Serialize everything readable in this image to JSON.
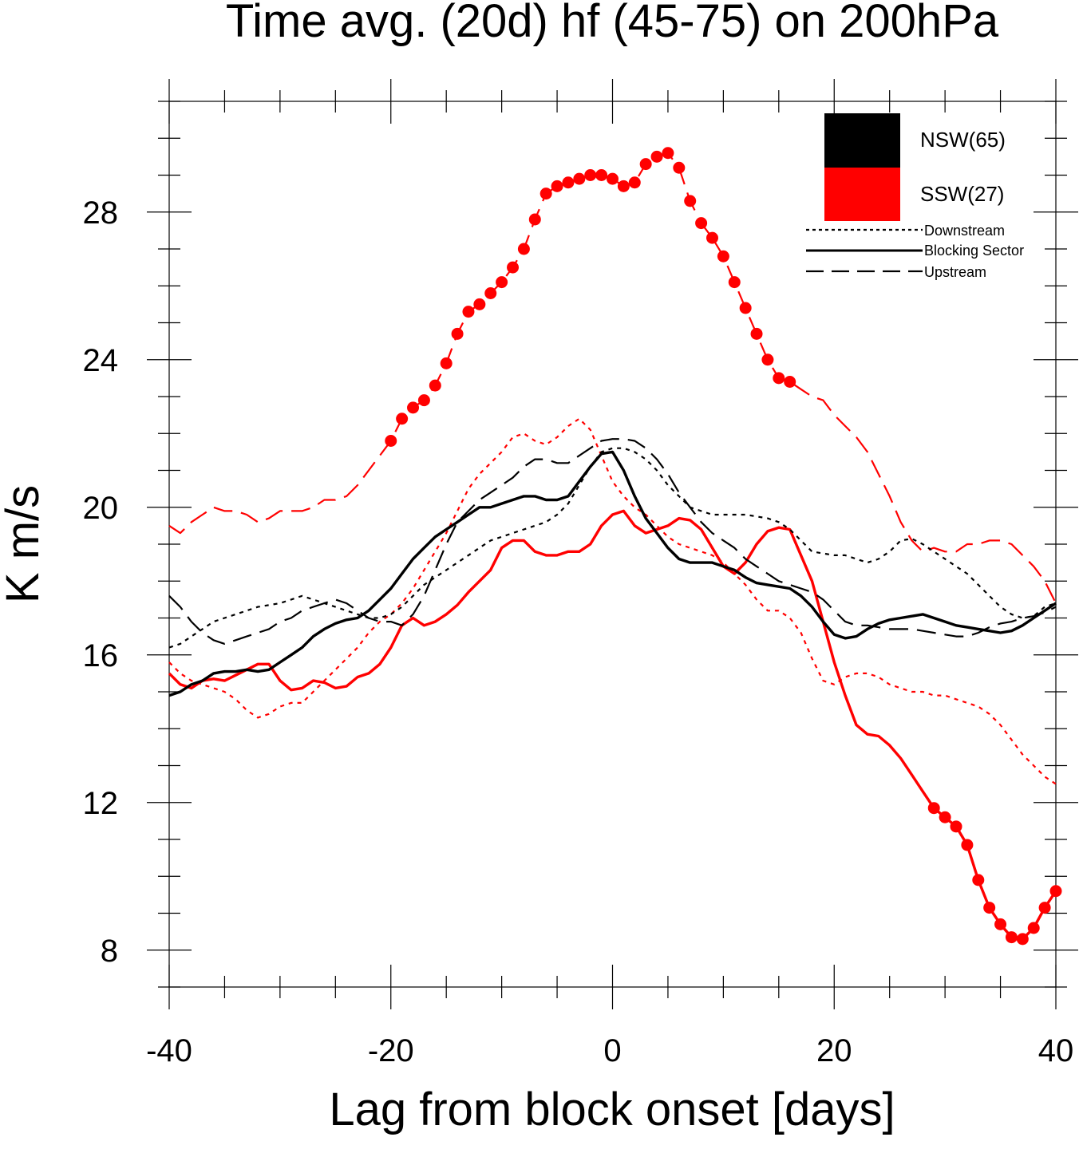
{
  "chart_data": {
    "type": "line",
    "title": "Time avg. (20d) hf (45-75) on 200hPa",
    "xlabel": "Lag from block onset [days]",
    "ylabel": "K m/s",
    "xlim": [
      -40,
      40
    ],
    "ylim": [
      7,
      31
    ],
    "xticks": [
      -40,
      -20,
      0,
      20,
      40
    ],
    "xtick_labels": [
      "-40",
      "-20",
      "0",
      "20",
      "40"
    ],
    "yticks": [
      8,
      12,
      16,
      20,
      24,
      28
    ],
    "ytick_labels": [
      "8",
      "12",
      "16",
      "20",
      "24",
      "28"
    ],
    "grid": false,
    "legend": {
      "placement": "top-right",
      "groups": [
        {
          "label": "NSW(65)",
          "color": "#000000"
        },
        {
          "label": "SSW(27)",
          "color": "#ff0000"
        }
      ],
      "styles": [
        {
          "label": "Downstream",
          "dash": "dotted"
        },
        {
          "label": "Blocking Sector",
          "dash": "solid"
        },
        {
          "label": "Upstream",
          "dash": "dashed"
        }
      ]
    },
    "colors": {
      "NSW": "#000000",
      "SSW": "#ff0000"
    },
    "series": [
      {
        "group": "SSW",
        "sector": "Upstream",
        "color": "#ff0000",
        "dash": "dashed",
        "x": [
          -40,
          -39,
          -38,
          -37,
          -36,
          -35,
          -34,
          -33,
          -32,
          -31,
          -30,
          -29,
          -28,
          -27,
          -26,
          -25,
          -24,
          -23,
          -22,
          -21,
          -20,
          -19,
          -18,
          -17,
          -16,
          -15,
          -14,
          -13,
          -12,
          -11,
          -10,
          -9,
          -8,
          -7,
          -6,
          -5,
          -4,
          -3,
          -2,
          -1,
          0,
          1,
          2,
          3,
          4,
          5,
          6,
          7,
          8,
          9,
          10,
          11,
          12,
          13,
          14,
          15,
          16,
          17,
          18,
          19,
          20,
          21,
          22,
          23,
          24,
          25,
          26,
          27,
          28,
          29,
          30,
          31,
          32,
          33,
          34,
          35,
          36,
          37,
          38,
          39,
          40
        ],
        "y": [
          19.5,
          19.3,
          19.6,
          19.8,
          20.0,
          19.9,
          19.9,
          19.8,
          19.6,
          19.7,
          19.9,
          19.9,
          19.9,
          20.0,
          20.2,
          20.2,
          20.3,
          20.6,
          21.0,
          21.4,
          21.8,
          22.4,
          22.7,
          22.9,
          23.3,
          23.9,
          24.7,
          25.3,
          25.5,
          25.8,
          26.1,
          26.5,
          27.0,
          27.8,
          28.5,
          28.7,
          28.8,
          28.9,
          29.0,
          29.0,
          28.9,
          28.7,
          28.8,
          29.3,
          29.5,
          29.6,
          29.2,
          28.3,
          27.7,
          27.3,
          26.8,
          26.1,
          25.4,
          24.7,
          24.0,
          23.5,
          23.4,
          23.2,
          23.0,
          22.9,
          22.5,
          22.2,
          21.9,
          21.5,
          20.9,
          20.3,
          19.6,
          19.1,
          18.8,
          18.9,
          18.8,
          18.8,
          19.0,
          19.0,
          19.1,
          19.1,
          19.0,
          18.7,
          18.4,
          18.0,
          17.4
        ],
        "markers": {
          "from": -20,
          "to": 16
        }
      },
      {
        "group": "SSW",
        "sector": "Blocking Sector",
        "color": "#ff0000",
        "dash": "solid",
        "x": [
          -40,
          -39,
          -38,
          -37,
          -36,
          -35,
          -34,
          -33,
          -32,
          -31,
          -30,
          -29,
          -28,
          -27,
          -26,
          -25,
          -24,
          -23,
          -22,
          -21,
          -20,
          -19,
          -18,
          -17,
          -16,
          -15,
          -14,
          -13,
          -12,
          -11,
          -10,
          -9,
          -8,
          -7,
          -6,
          -5,
          -4,
          -3,
          -2,
          -1,
          0,
          1,
          2,
          3,
          4,
          5,
          6,
          7,
          8,
          9,
          10,
          11,
          12,
          13,
          14,
          15,
          16,
          17,
          18,
          19,
          20,
          21,
          22,
          23,
          24,
          25,
          26,
          27,
          28,
          29,
          30,
          31,
          32,
          33,
          34,
          35,
          36,
          37,
          38,
          39,
          40
        ],
        "y": [
          15.5,
          15.2,
          15.1,
          15.3,
          15.35,
          15.3,
          15.45,
          15.6,
          15.75,
          15.75,
          15.3,
          15.05,
          15.1,
          15.3,
          15.25,
          15.1,
          15.15,
          15.4,
          15.5,
          15.75,
          16.2,
          16.8,
          17.0,
          16.8,
          16.9,
          17.1,
          17.35,
          17.7,
          18.0,
          18.3,
          18.9,
          19.1,
          19.1,
          18.8,
          18.7,
          18.7,
          18.8,
          18.8,
          19.0,
          19.5,
          19.8,
          19.9,
          19.5,
          19.3,
          19.4,
          19.5,
          19.7,
          19.65,
          19.4,
          18.9,
          18.4,
          18.2,
          18.5,
          19.0,
          19.35,
          19.45,
          19.4,
          18.7,
          18.0,
          16.9,
          15.8,
          14.9,
          14.1,
          13.85,
          13.8,
          13.55,
          13.2,
          12.75,
          12.3,
          11.85,
          11.6,
          11.35,
          10.85,
          9.9,
          9.15,
          8.7,
          8.35,
          8.3,
          8.6,
          9.15,
          9.6
        ],
        "markers": {
          "from": 29,
          "to": 40
        }
      },
      {
        "group": "SSW",
        "sector": "Downstream",
        "color": "#ff0000",
        "dash": "dotted",
        "x": [
          -40,
          -39,
          -38,
          -37,
          -36,
          -35,
          -34,
          -33,
          -32,
          -31,
          -30,
          -29,
          -28,
          -27,
          -26,
          -25,
          -24,
          -23,
          -22,
          -21,
          -20,
          -19,
          -18,
          -17,
          -16,
          -15,
          -14,
          -13,
          -12,
          -11,
          -10,
          -9,
          -8,
          -7,
          -6,
          -5,
          -4,
          -3,
          -2,
          -1,
          0,
          1,
          2,
          3,
          4,
          5,
          6,
          7,
          8,
          9,
          10,
          11,
          12,
          13,
          14,
          15,
          16,
          17,
          18,
          19,
          20,
          21,
          22,
          23,
          24,
          25,
          26,
          27,
          28,
          29,
          30,
          31,
          32,
          33,
          34,
          35,
          36,
          37,
          38,
          39,
          40
        ],
        "y": [
          15.8,
          15.5,
          15.3,
          15.2,
          15.1,
          15.0,
          14.8,
          14.5,
          14.3,
          14.4,
          14.6,
          14.7,
          14.7,
          15.0,
          15.3,
          15.6,
          15.9,
          16.2,
          16.6,
          16.9,
          17.1,
          17.4,
          17.8,
          18.3,
          18.8,
          19.3,
          19.9,
          20.5,
          20.9,
          21.2,
          21.5,
          21.9,
          22.0,
          21.8,
          21.7,
          21.9,
          22.2,
          22.4,
          22.1,
          21.4,
          20.7,
          20.3,
          20.0,
          19.8,
          19.5,
          19.2,
          19.0,
          18.9,
          18.8,
          18.7,
          18.5,
          18.2,
          17.9,
          17.5,
          17.2,
          17.2,
          17.0,
          16.6,
          15.9,
          15.3,
          15.2,
          15.4,
          15.5,
          15.5,
          15.4,
          15.2,
          15.1,
          15.0,
          15.0,
          14.9,
          14.9,
          14.8,
          14.7,
          14.6,
          14.4,
          14.1,
          13.7,
          13.3,
          13.0,
          12.7,
          12.5
        ]
      },
      {
        "group": "NSW",
        "sector": "Upstream",
        "color": "#000000",
        "dash": "dashed",
        "x": [
          -40,
          -39,
          -38,
          -37,
          -36,
          -35,
          -34,
          -33,
          -32,
          -31,
          -30,
          -29,
          -28,
          -27,
          -26,
          -25,
          -24,
          -23,
          -22,
          -21,
          -20,
          -19,
          -18,
          -17,
          -16,
          -15,
          -14,
          -13,
          -12,
          -11,
          -10,
          -9,
          -8,
          -7,
          -6,
          -5,
          -4,
          -3,
          -2,
          -1,
          0,
          1,
          2,
          3,
          4,
          5,
          6,
          7,
          8,
          9,
          10,
          11,
          12,
          13,
          14,
          15,
          16,
          17,
          18,
          19,
          20,
          21,
          22,
          23,
          24,
          25,
          26,
          27,
          28,
          29,
          30,
          31,
          32,
          33,
          34,
          35,
          36,
          37,
          38,
          39,
          40
        ],
        "y": [
          17.6,
          17.3,
          16.9,
          16.6,
          16.4,
          16.3,
          16.4,
          16.5,
          16.6,
          16.7,
          16.9,
          17.0,
          17.2,
          17.3,
          17.4,
          17.5,
          17.4,
          17.2,
          17.0,
          16.9,
          16.9,
          16.8,
          17.1,
          17.6,
          18.3,
          19.0,
          19.6,
          19.9,
          20.2,
          20.4,
          20.6,
          20.8,
          21.1,
          21.3,
          21.3,
          21.2,
          21.2,
          21.4,
          21.6,
          21.8,
          21.85,
          21.85,
          21.8,
          21.6,
          21.3,
          20.9,
          20.4,
          20.0,
          19.6,
          19.3,
          19.1,
          18.9,
          18.6,
          18.4,
          18.2,
          18.0,
          17.9,
          17.8,
          17.7,
          17.5,
          17.2,
          16.9,
          16.8,
          16.8,
          16.75,
          16.7,
          16.7,
          16.7,
          16.65,
          16.6,
          16.55,
          16.5,
          16.5,
          16.6,
          16.75,
          16.85,
          16.9,
          17.0,
          17.05,
          17.15,
          17.3
        ]
      },
      {
        "group": "NSW",
        "sector": "Blocking Sector",
        "color": "#000000",
        "dash": "solid",
        "x": [
          -40,
          -39,
          -38,
          -37,
          -36,
          -35,
          -34,
          -33,
          -32,
          -31,
          -30,
          -29,
          -28,
          -27,
          -26,
          -25,
          -24,
          -23,
          -22,
          -21,
          -20,
          -19,
          -18,
          -17,
          -16,
          -15,
          -14,
          -13,
          -12,
          -11,
          -10,
          -9,
          -8,
          -7,
          -6,
          -5,
          -4,
          -3,
          -2,
          -1,
          0,
          1,
          2,
          3,
          4,
          5,
          6,
          7,
          8,
          9,
          10,
          11,
          12,
          13,
          14,
          15,
          16,
          17,
          18,
          19,
          20,
          21,
          22,
          23,
          24,
          25,
          26,
          27,
          28,
          29,
          30,
          31,
          32,
          33,
          34,
          35,
          36,
          37,
          38,
          39,
          40
        ],
        "y": [
          14.9,
          15.0,
          15.2,
          15.3,
          15.5,
          15.55,
          15.55,
          15.6,
          15.55,
          15.6,
          15.8,
          16.0,
          16.2,
          16.5,
          16.7,
          16.85,
          16.95,
          17.0,
          17.2,
          17.5,
          17.8,
          18.2,
          18.6,
          18.9,
          19.2,
          19.4,
          19.6,
          19.8,
          20.0,
          20.0,
          20.1,
          20.2,
          20.3,
          20.3,
          20.2,
          20.2,
          20.3,
          20.7,
          21.1,
          21.45,
          21.5,
          21.0,
          20.3,
          19.7,
          19.3,
          18.9,
          18.6,
          18.5,
          18.5,
          18.5,
          18.4,
          18.3,
          18.1,
          17.95,
          17.9,
          17.85,
          17.8,
          17.6,
          17.3,
          16.9,
          16.55,
          16.45,
          16.5,
          16.7,
          16.85,
          16.95,
          17.0,
          17.05,
          17.1,
          17.0,
          16.9,
          16.8,
          16.75,
          16.7,
          16.65,
          16.6,
          16.65,
          16.8,
          17.0,
          17.2,
          17.4
        ]
      },
      {
        "group": "NSW",
        "sector": "Downstream",
        "color": "#000000",
        "dash": "dotted",
        "x": [
          -40,
          -39,
          -38,
          -37,
          -36,
          -35,
          -34,
          -33,
          -32,
          -31,
          -30,
          -29,
          -28,
          -27,
          -26,
          -25,
          -24,
          -23,
          -22,
          -21,
          -20,
          -19,
          -18,
          -17,
          -16,
          -15,
          -14,
          -13,
          -12,
          -11,
          -10,
          -9,
          -8,
          -7,
          -6,
          -5,
          -4,
          -3,
          -2,
          -1,
          0,
          1,
          2,
          3,
          4,
          5,
          6,
          7,
          8,
          9,
          10,
          11,
          12,
          13,
          14,
          15,
          16,
          17,
          18,
          19,
          20,
          21,
          22,
          23,
          24,
          25,
          26,
          27,
          28,
          29,
          30,
          31,
          32,
          33,
          34,
          35,
          36,
          37,
          38,
          39,
          40
        ],
        "y": [
          16.2,
          16.3,
          16.5,
          16.7,
          16.9,
          17.0,
          17.1,
          17.2,
          17.3,
          17.35,
          17.4,
          17.5,
          17.6,
          17.5,
          17.4,
          17.3,
          17.2,
          17.1,
          17.0,
          17.0,
          17.1,
          17.3,
          17.6,
          17.9,
          18.1,
          18.3,
          18.5,
          18.7,
          18.9,
          19.1,
          19.2,
          19.3,
          19.4,
          19.5,
          19.6,
          19.8,
          20.1,
          20.6,
          21.1,
          21.5,
          21.6,
          21.6,
          21.5,
          21.3,
          21.0,
          20.6,
          20.3,
          20.0,
          19.9,
          19.8,
          19.8,
          19.8,
          19.8,
          19.75,
          19.7,
          19.6,
          19.4,
          19.1,
          18.8,
          18.75,
          18.7,
          18.7,
          18.6,
          18.5,
          18.6,
          18.8,
          19.1,
          19.15,
          19.0,
          18.8,
          18.6,
          18.4,
          18.2,
          17.9,
          17.6,
          17.3,
          17.1,
          17.0,
          17.05,
          17.3,
          17.4
        ]
      }
    ]
  }
}
